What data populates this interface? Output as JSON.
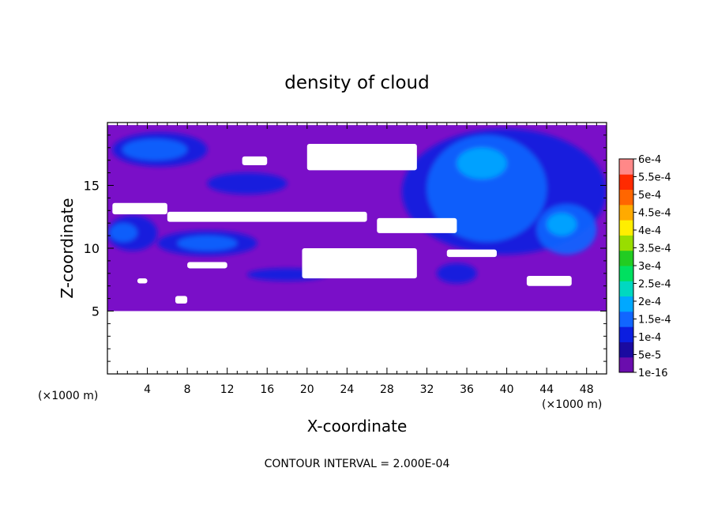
{
  "chart_data": {
    "type": "heatmap",
    "title": "density of cloud",
    "xlabel": "X-coordinate",
    "ylabel": "Z-coordinate",
    "x_unit": "(×1000 m)",
    "y_unit": "(×1000 m)",
    "xlim": [
      0,
      50
    ],
    "ylim": [
      0,
      20
    ],
    "x_ticks": [
      4,
      8,
      12,
      16,
      20,
      24,
      28,
      32,
      36,
      40,
      44,
      48
    ],
    "y_ticks": [
      5,
      10,
      15
    ],
    "footer": "CONTOUR INTERVAL = 2.000E-04",
    "colorbar": {
      "labels": [
        "6e-4",
        "5.5e-4",
        "5e-4",
        "4.5e-4",
        "4e-4",
        "3.5e-4",
        "3e-4",
        "2.5e-4",
        "2e-4",
        "1.5e-4",
        "1e-4",
        "5e-5",
        "1e-16"
      ],
      "colors": [
        "#6a0dad",
        "#1a0aa0",
        "#0b1ee0",
        "#1166ff",
        "#00a8ff",
        "#00d8c0",
        "#00e060",
        "#22cc22",
        "#99dd00",
        "#ffee00",
        "#ffaa00",
        "#ff6600",
        "#ff2a00",
        "#ff8888"
      ]
    },
    "cloud_base_z": 5,
    "cloud_top_z": 19.8,
    "background_color": "#7a0fc8",
    "regions": [
      {
        "level": "5e-5",
        "x": [
          0.5,
          10
        ],
        "z": [
          16.5,
          19.2
        ]
      },
      {
        "level": "5e-5",
        "x": [
          10,
          18
        ],
        "z": [
          14.3,
          16.0
        ]
      },
      {
        "level": "5e-5",
        "x": [
          0,
          5
        ],
        "z": [
          9.8,
          12.6
        ]
      },
      {
        "level": "5e-5",
        "x": [
          5,
          15
        ],
        "z": [
          9.4,
          11.4
        ]
      },
      {
        "level": "5e-5",
        "x": [
          14,
          22
        ],
        "z": [
          7.4,
          8.4
        ]
      },
      {
        "level": "5e-5",
        "x": [
          29.5,
          50
        ],
        "z": [
          9.5,
          19.5
        ]
      },
      {
        "level": "5e-5",
        "x": [
          33,
          37
        ],
        "z": [
          7.2,
          8.8
        ]
      },
      {
        "level": "1e-4",
        "x": [
          1.5,
          8
        ],
        "z": [
          17.0,
          18.7
        ]
      },
      {
        "level": "1e-4",
        "x": [
          7,
          13
        ],
        "z": [
          9.8,
          11.0
        ]
      },
      {
        "level": "1e-4",
        "x": [
          0.2,
          3
        ],
        "z": [
          10.5,
          12.0
        ]
      },
      {
        "level": "1e-4",
        "x": [
          32,
          44
        ],
        "z": [
          10.5,
          19.0
        ]
      },
      {
        "level": "1e-4",
        "x": [
          43,
          49
        ],
        "z": [
          9.5,
          13.5
        ]
      },
      {
        "level": "1.5e-4",
        "x": [
          35,
          40
        ],
        "z": [
          15.5,
          18.0
        ]
      },
      {
        "level": "1.5e-4",
        "x": [
          44,
          47
        ],
        "z": [
          11.0,
          12.8
        ]
      }
    ],
    "holes": [
      {
        "x": [
          20,
          31
        ],
        "z": [
          16.2,
          18.3
        ]
      },
      {
        "x": [
          13.5,
          16
        ],
        "z": [
          16.6,
          17.3
        ]
      },
      {
        "x": [
          0.5,
          6
        ],
        "z": [
          12.7,
          13.6
        ]
      },
      {
        "x": [
          6,
          26
        ],
        "z": [
          12.1,
          12.9
        ]
      },
      {
        "x": [
          27,
          35
        ],
        "z": [
          11.2,
          12.4
        ]
      },
      {
        "x": [
          19.5,
          31
        ],
        "z": [
          7.6,
          10.0
        ]
      },
      {
        "x": [
          8,
          12
        ],
        "z": [
          8.4,
          8.9
        ]
      },
      {
        "x": [
          34,
          39
        ],
        "z": [
          9.3,
          9.9
        ]
      },
      {
        "x": [
          42,
          46.5
        ],
        "z": [
          7.0,
          7.8
        ]
      },
      {
        "x": [
          3,
          4
        ],
        "z": [
          7.2,
          7.6
        ]
      },
      {
        "x": [
          6.8,
          8
        ],
        "z": [
          5.6,
          6.2
        ]
      }
    ]
  }
}
